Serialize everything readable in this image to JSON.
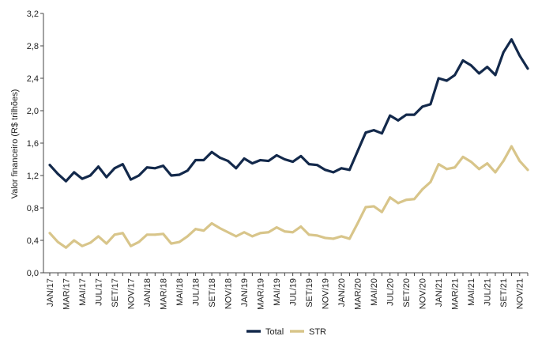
{
  "chart_data": {
    "type": "line",
    "title": "",
    "xlabel": "",
    "ylabel": "Valor financeiro (R$ trilhões)",
    "ylim": [
      0,
      3.2
    ],
    "yticks": [
      "0,0",
      "0,4",
      "0,8",
      "1,2",
      "1,6",
      "2,0",
      "2,4",
      "2,8",
      "3,2"
    ],
    "ytick_values": [
      0,
      0.4,
      0.8,
      1.2,
      1.6,
      2.0,
      2.4,
      2.8,
      3.2
    ],
    "xtick_labels": [
      "JAN/17",
      "MAR/17",
      "MAI/17",
      "JUL/17",
      "SET/17",
      "NOV/17",
      "JAN/18",
      "MAR/18",
      "MAI/18",
      "JUL/18",
      "SET/18",
      "NOV/18",
      "JAN/19",
      "MAR/19",
      "MAI/19",
      "JUL/19",
      "SET/19",
      "NOV/19",
      "JAN/20",
      "MAR/20",
      "MAI/20",
      "JUL/20",
      "SET/20",
      "NOV/20",
      "JAN/21",
      "MAR/21",
      "MAI/21",
      "JUL/21",
      "SET/21",
      "NOV/21"
    ],
    "categories": [
      "JAN/17",
      "FEV/17",
      "MAR/17",
      "ABR/17",
      "MAI/17",
      "JUN/17",
      "JUL/17",
      "AGO/17",
      "SET/17",
      "OUT/17",
      "NOV/17",
      "DEZ/17",
      "JAN/18",
      "FEV/18",
      "MAR/18",
      "ABR/18",
      "MAI/18",
      "JUN/18",
      "JUL/18",
      "AGO/18",
      "SET/18",
      "OUT/18",
      "NOV/18",
      "DEZ/18",
      "JAN/19",
      "FEV/19",
      "MAR/19",
      "ABR/19",
      "MAI/19",
      "JUN/19",
      "JUL/19",
      "AGO/19",
      "SET/19",
      "OUT/19",
      "NOV/19",
      "DEZ/19",
      "JAN/20",
      "FEV/20",
      "MAR/20",
      "ABR/20",
      "MAI/20",
      "JUN/20",
      "JUL/20",
      "AGO/20",
      "SET/20",
      "OUT/20",
      "NOV/20",
      "DEZ/20",
      "JAN/21",
      "FEV/21",
      "MAR/21",
      "ABR/21",
      "MAI/21",
      "JUN/21",
      "JUL/21",
      "AGO/21",
      "SET/21",
      "OUT/21",
      "NOV/21",
      "DEZ/21"
    ],
    "series": [
      {
        "name": "Total",
        "color": "#13294b",
        "values": [
          1.33,
          1.22,
          1.13,
          1.24,
          1.16,
          1.2,
          1.31,
          1.18,
          1.29,
          1.34,
          1.15,
          1.2,
          1.3,
          1.29,
          1.32,
          1.2,
          1.21,
          1.26,
          1.39,
          1.39,
          1.49,
          1.42,
          1.38,
          1.29,
          1.41,
          1.35,
          1.39,
          1.38,
          1.45,
          1.4,
          1.37,
          1.44,
          1.34,
          1.33,
          1.27,
          1.24,
          1.29,
          1.27,
          1.5,
          1.73,
          1.76,
          1.72,
          1.94,
          1.88,
          1.95,
          1.95,
          2.05,
          2.08,
          2.4,
          2.37,
          2.44,
          2.62,
          2.56,
          2.46,
          2.54,
          2.44,
          2.72,
          2.88,
          2.68,
          2.52
        ]
      },
      {
        "name": "STR",
        "color": "#d8c58a",
        "values": [
          0.49,
          0.38,
          0.31,
          0.4,
          0.33,
          0.37,
          0.45,
          0.36,
          0.47,
          0.49,
          0.33,
          0.38,
          0.47,
          0.47,
          0.48,
          0.36,
          0.38,
          0.45,
          0.54,
          0.52,
          0.61,
          0.55,
          0.5,
          0.45,
          0.5,
          0.45,
          0.49,
          0.5,
          0.56,
          0.51,
          0.5,
          0.57,
          0.47,
          0.46,
          0.43,
          0.42,
          0.45,
          0.42,
          0.61,
          0.81,
          0.82,
          0.75,
          0.93,
          0.86,
          0.9,
          0.91,
          1.03,
          1.12,
          1.34,
          1.28,
          1.3,
          1.43,
          1.37,
          1.28,
          1.35,
          1.24,
          1.38,
          1.56,
          1.38,
          1.27
        ]
      }
    ],
    "legend": [
      "Total",
      "STR"
    ],
    "legend_position": "bottom",
    "grid": false
  }
}
